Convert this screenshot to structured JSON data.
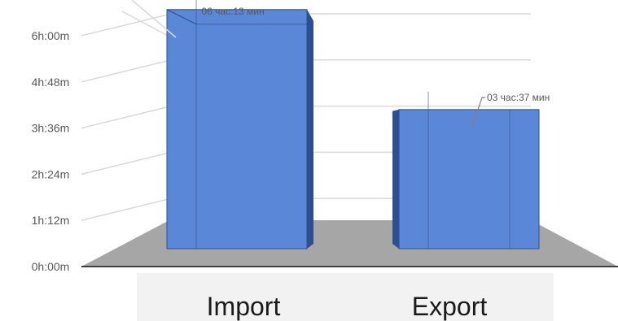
{
  "chart_data": {
    "type": "bar",
    "style": "3d-column",
    "categories": [
      "Import",
      "Export"
    ],
    "series": [
      {
        "values_minutes": [
          373,
          217
        ]
      }
    ],
    "data_labels": [
      "06 час:13 мин",
      "03 час:37 мин"
    ],
    "y_tick_labels": [
      "0h:00m",
      "1h:12m",
      "2h:24m",
      "3h:36m",
      "4h:48m",
      "6h:00m"
    ],
    "y_tick_values_minutes": [
      0,
      72,
      144,
      216,
      288,
      360
    ],
    "ylim_minutes": [
      0,
      360
    ],
    "title": "",
    "xlabel": "",
    "ylabel": "",
    "grid": true,
    "legend": "none",
    "colors": {
      "bar_front": "#5b87d8",
      "bar_side": "#2e4f8f",
      "bar_top": "#7ea3e6",
      "bar_edge": "#2f4f8c",
      "floor": "#a6a6a6",
      "grid": "#d9d9d9",
      "axis": "#404040",
      "category_band": "#f2f2f2"
    }
  }
}
